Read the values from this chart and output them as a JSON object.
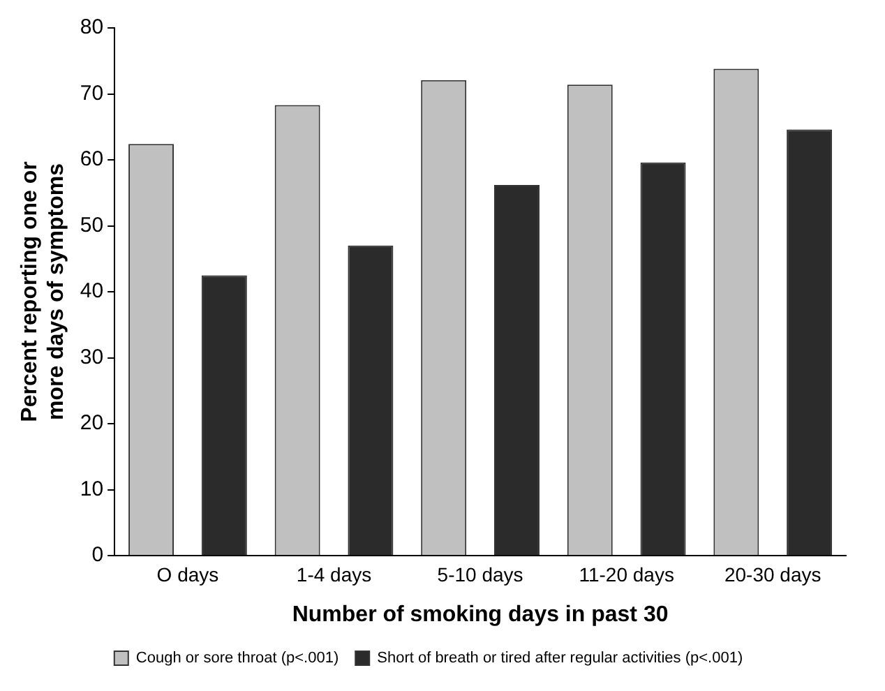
{
  "chart_data": {
    "type": "bar",
    "xlabel": "Number of smoking days in past 30",
    "ylabel": "Percent reporting one or more days of symptoms",
    "categories": [
      "O days",
      "1-4 days",
      "5-10 days",
      "11-20 days",
      "20-30 days"
    ],
    "series": [
      {
        "name": "Cough or sore throat (p<.001)",
        "color": "#c0c0c0",
        "values": [
          62.4,
          68.3,
          72.1,
          71.4,
          73.8
        ]
      },
      {
        "name": "Short of breath or tired after regular activities (p<.001)",
        "color": "#2b2b2b",
        "values": [
          42.5,
          47.0,
          56.2,
          59.6,
          64.6
        ]
      }
    ],
    "ylim": [
      0,
      80
    ],
    "yticks": [
      0,
      10,
      20,
      30,
      40,
      50,
      60,
      70,
      80
    ],
    "grid": false,
    "legend": "bottom"
  }
}
